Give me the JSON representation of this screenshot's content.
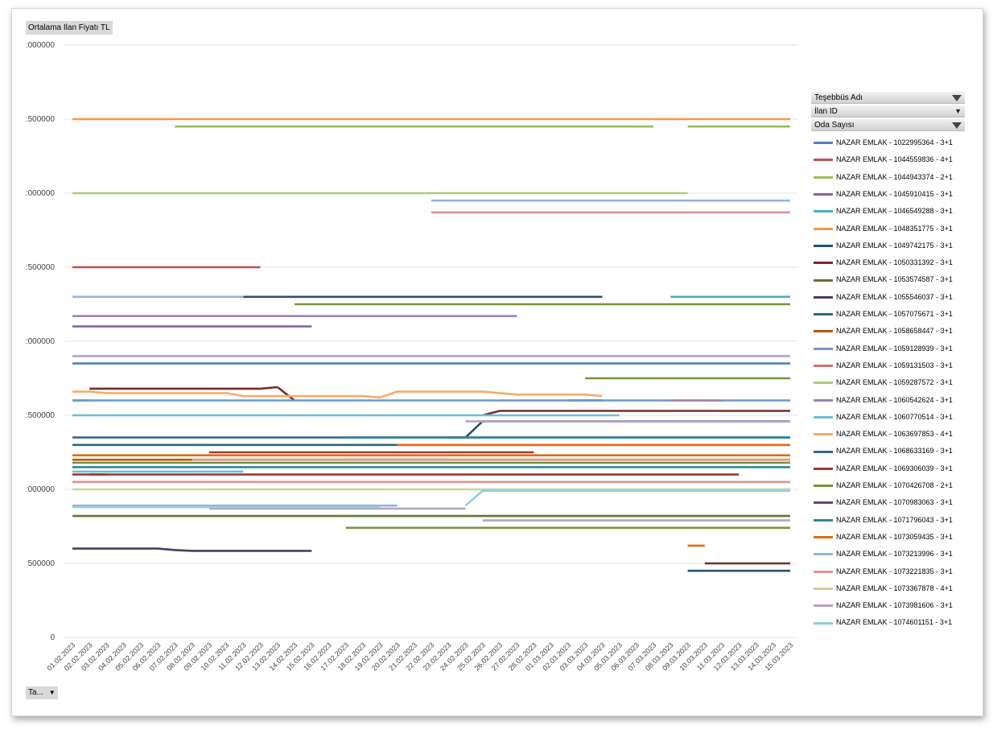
{
  "value_field": "Ortalama Ilan Fiyatı TL",
  "filter_headers": [
    {
      "label": "Teşebbüs Adı",
      "control": "filter"
    },
    {
      "label": "İlan ID",
      "control": "dropdown"
    },
    {
      "label": "Oda Sayısı",
      "control": "filter"
    }
  ],
  "axis_field": "Ta...",
  "chart_data": {
    "type": "line",
    "title": "",
    "xlabel": "",
    "ylabel": "",
    "ylim": [
      0,
      4000000
    ],
    "y_ticks": [
      "0",
      "500000",
      "1000000",
      "1500000",
      "2000000",
      "2500000",
      "3000000",
      "3500000",
      "4000000"
    ],
    "y_tick_labels": [
      "0",
      "500000",
      ":000000",
      ":500000",
      ":000000",
      ":500000",
      ":000000",
      ":500000",
      ":000000"
    ],
    "grid": true,
    "legend_position": "right",
    "x": [
      "01.02.2023",
      "02.02.2023",
      "03.02.2023",
      "04.02.2023",
      "05.02.2023",
      "06.02.2023",
      "07.02.2023",
      "08.02.2023",
      "09.02.2023",
      "10.02.2023",
      "11.02.2023",
      "12.02.2023",
      "13.02.2023",
      "14.02.2023",
      "15.02.2023",
      "16.02.2023",
      "17.02.2023",
      "18.02.2023",
      "19.02.2023",
      "20.02.2023",
      "21.02.2023",
      "22.02.2023",
      "23.02.2023",
      "24.02.2023",
      "25.02.2023",
      "26.02.2023",
      "27.02.2023",
      "28.02.2023",
      "01.03.2023",
      "02.03.2023",
      "03.03.2023",
      "04.03.2023",
      "05.03.2023",
      "06.03.2023",
      "07.03.2023",
      "08.03.2023",
      "09.03.2023",
      "10.03.2023",
      "11.03.2023",
      "12.03.2023",
      "13.03.2023",
      "14.03.2023",
      "15.03.2023"
    ],
    "series": [
      {
        "name": "NAZAR EMLAK - 1022995364 - 3+1",
        "color": "#4f81bd",
        "segments": [
          [
            0,
            42,
            [
              [
                0,
                1850000
              ]
            ]
          ]
        ]
      },
      {
        "name": "NAZAR EMLAK - 1044559836 - 4+1",
        "color": "#c0504d",
        "segments": [
          [
            0,
            11,
            [
              [
                0,
                2500000
              ]
            ]
          ]
        ]
      },
      {
        "name": "NAZAR EMLAK - 1044943374 - 2+1",
        "color": "#9bbb59",
        "segments": [
          [
            6,
            34,
            [
              [
                6,
                3450000
              ]
            ]
          ],
          [
            36,
            42,
            [
              [
                36,
                3450000
              ]
            ]
          ]
        ]
      },
      {
        "name": "NAZAR EMLAK - 1045910415 - 3+1",
        "color": "#8064a2",
        "segments": [
          [
            0,
            14,
            [
              [
                0,
                2100000
              ]
            ]
          ]
        ]
      },
      {
        "name": "NAZAR EMLAK - 1046549288 - 3+1",
        "color": "#4bacc6",
        "segments": [
          [
            35,
            42,
            [
              [
                35,
                2300000
              ]
            ]
          ]
        ]
      },
      {
        "name": "NAZAR EMLAK - 1048351775 - 3+1",
        "color": "#f79646",
        "segments": [
          [
            0,
            42,
            [
              [
                0,
                3500000
              ]
            ]
          ]
        ]
      },
      {
        "name": "NAZAR EMLAK - 1049742175 - 3+1",
        "color": "#2c4d75",
        "segments": [
          [
            10,
            31,
            [
              [
                10,
                2300000
              ]
            ]
          ],
          [
            0,
            1,
            [
              [
                0,
                1600000
              ]
            ]
          ],
          [
            29,
            31,
            [
              [
                29,
                1600000
              ]
            ]
          ],
          [
            36,
            42,
            [
              [
                36,
                450000
              ]
            ]
          ],
          [
            22,
            42,
            [
              [
                22,
                1350000
              ],
              [
                24,
                1460000
              ]
            ]
          ]
        ]
      },
      {
        "name": "NAZAR EMLAK - 1050331392 - 3+1",
        "color": "#772c2a",
        "segments": [
          [
            1,
            12,
            [
              [
                1,
                1680000
              ],
              [
                12,
                1690000
              ],
              [
                13,
                1600000
              ]
            ]
          ],
          [
            12,
            13,
            [
              [
                12,
                1690000
              ],
              [
                13,
                1600000
              ]
            ]
          ],
          [
            24,
            42,
            [
              [
                24,
                1500000
              ],
              [
                25,
                1530000
              ]
            ]
          ],
          [
            1,
            2,
            [
              [
                1,
                1100000
              ]
            ]
          ],
          [
            37,
            42,
            [
              [
                37,
                500000
              ]
            ]
          ]
        ]
      },
      {
        "name": "NAZAR EMLAK - 1053574587 - 3+1",
        "color": "#5f7530",
        "segments": [
          [
            0,
            42,
            [
              [
                0,
                820000
              ]
            ]
          ]
        ]
      },
      {
        "name": "NAZAR EMLAK - 1055546037 - 3+1",
        "color": "#4d3b62",
        "segments": [
          [
            0,
            14,
            [
              [
                0,
                600000
              ],
              [
                4,
                600000
              ],
              [
                6,
                590000
              ],
              [
                7,
                585000
              ]
            ]
          ]
        ]
      },
      {
        "name": "NAZAR EMLAK - 1057075671 - 3+1",
        "color": "#276a7c",
        "segments": [
          [
            0,
            42,
            [
              [
                0,
                1300000
              ]
            ]
          ]
        ]
      },
      {
        "name": "NAZAR EMLAK - 1058658447 - 3+1",
        "color": "#b65708",
        "segments": [
          [
            0,
            42,
            [
              [
                0,
                1200000
              ]
            ]
          ]
        ]
      },
      {
        "name": "NAZAR EMLAK - 1059128939 - 3+1",
        "color": "#729aca",
        "segments": [
          [
            0,
            42,
            [
              [
                0,
                1600000
              ]
            ]
          ]
        ]
      },
      {
        "name": "NAZAR EMLAK - 1059131503 - 3+1",
        "color": "#cd7371",
        "segments": [
          [
            0,
            42,
            [
              [
                0,
                1050000
              ]
            ]
          ]
        ]
      },
      {
        "name": "NAZAR EMLAK - 1059287572 - 3+1",
        "color": "#afc97a",
        "segments": [
          [
            0,
            36,
            [
              [
                0,
                3000000
              ]
            ]
          ]
        ]
      },
      {
        "name": "NAZAR EMLAK - 1060542624 - 3+1",
        "color": "#9983b5",
        "segments": [
          [
            0,
            26,
            [
              [
                0,
                2170000
              ]
            ]
          ],
          [
            35,
            38,
            [
              [
                35,
                1600000
              ]
            ]
          ]
        ]
      },
      {
        "name": "NAZAR EMLAK - 1060770514 - 3+1",
        "color": "#6fbdd1",
        "segments": [
          [
            0,
            32,
            [
              [
                0,
                1500000
              ]
            ]
          ],
          [
            0,
            10,
            [
              [
                0,
                1120000
              ]
            ]
          ]
        ]
      },
      {
        "name": "NAZAR EMLAK - 1063697853 - 4+1",
        "color": "#f9ab6b",
        "segments": [
          [
            0,
            31,
            [
              [
                0,
                1660000
              ],
              [
                2,
                1650000
              ],
              [
                10,
                1630000
              ],
              [
                18,
                1620000
              ],
              [
                19,
                1660000
              ],
              [
                25,
                1650000
              ],
              [
                26,
                1640000
              ],
              [
                31,
                1630000
              ]
            ]
          ]
        ]
      },
      {
        "name": "NAZAR EMLAK - 1068633169 - 3+1",
        "color": "#3a6592",
        "segments": [
          [
            0,
            42,
            [
              [
                0,
                1350000
              ]
            ]
          ]
        ]
      },
      {
        "name": "NAZAR EMLAK - 1069306039 - 3+1",
        "color": "#9a3a37",
        "segments": [
          [
            0,
            39,
            [
              [
                0,
                1100000
              ]
            ]
          ],
          [
            8,
            27,
            [
              [
                8,
                1250000
              ]
            ]
          ]
        ]
      },
      {
        "name": "NAZAR EMLAK - 1070426708 - 2+1",
        "color": "#77933c",
        "segments": [
          [
            16,
            42,
            [
              [
                16,
                740000
              ]
            ]
          ],
          [
            0,
            42,
            [
              [
                0,
                1180000
              ]
            ]
          ],
          [
            13,
            42,
            [
              [
                13,
                2250000
              ]
            ]
          ],
          [
            30,
            42,
            [
              [
                30,
                1750000
              ]
            ]
          ]
        ]
      },
      {
        "name": "NAZAR EMLAK - 1070983063 - 3+1",
        "color": "#604a7b",
        "segments": [
          [
            16,
            22,
            [
              [
                16,
                1200000
              ]
            ]
          ]
        ]
      },
      {
        "name": "NAZAR EMLAK - 1071796043 - 3+1",
        "color": "#31859c",
        "segments": [
          [
            0,
            42,
            [
              [
                0,
                1150000
              ]
            ]
          ],
          [
            16,
            42,
            [
              [
                16,
                1350000
              ]
            ]
          ]
        ]
      },
      {
        "name": "NAZAR EMLAK - 1073059435 - 3+1",
        "color": "#e46c0a",
        "segments": [
          [
            0,
            42,
            [
              [
                0,
                1230000
              ]
            ]
          ],
          [
            36,
            37,
            [
              [
                36,
                620000
              ]
            ]
          ],
          [
            19,
            42,
            [
              [
                19,
                1300000
              ]
            ]
          ]
        ]
      },
      {
        "name": "NAZAR EMLAK - 1073213996 - 3+1",
        "color": "#95b3d7",
        "segments": [
          [
            0,
            10,
            [
              [
                0,
                2300000
              ]
            ]
          ],
          [
            21,
            42,
            [
              [
                21,
                2950000
              ]
            ]
          ],
          [
            0,
            19,
            [
              [
                0,
                890000
              ]
            ]
          ]
        ]
      },
      {
        "name": "NAZAR EMLAK - 1073221835 - 3+1",
        "color": "#d99694",
        "segments": [
          [
            21,
            42,
            [
              [
                21,
                2870000
              ]
            ]
          ],
          [
            7,
            42,
            [
              [
                7,
                1200000
              ]
            ]
          ],
          [
            0,
            42,
            [
              [
                0,
                1050000
              ]
            ]
          ]
        ]
      },
      {
        "name": "NAZAR EMLAK - 1073367878 - 4+1",
        "color": "#c4d79b",
        "segments": [
          [
            0,
            42,
            [
              [
                0,
                1000000
              ]
            ]
          ]
        ]
      },
      {
        "name": "NAZAR EMLAK - 1073981606 - 3+1",
        "color": "#b3a2c7",
        "segments": [
          [
            0,
            42,
            [
              [
                0,
                1900000
              ]
            ]
          ],
          [
            8,
            23,
            [
              [
                8,
                870000
              ],
              [
                23,
                870000
              ],
              [
                24,
                790000
              ]
            ]
          ],
          [
            24,
            42,
            [
              [
                24,
                790000
              ]
            ]
          ],
          [
            23,
            42,
            [
              [
                23,
                1460000
              ]
            ]
          ]
        ]
      },
      {
        "name": "NAZAR EMLAK - 1074601151 - 3+1",
        "color": "#92cddc",
        "segments": [
          [
            0,
            18,
            [
              [
                0,
                880000
              ]
            ]
          ],
          [
            23,
            42,
            [
              [
                23,
                890000
              ],
              [
                24,
                990000
              ]
            ]
          ]
        ]
      }
    ]
  }
}
